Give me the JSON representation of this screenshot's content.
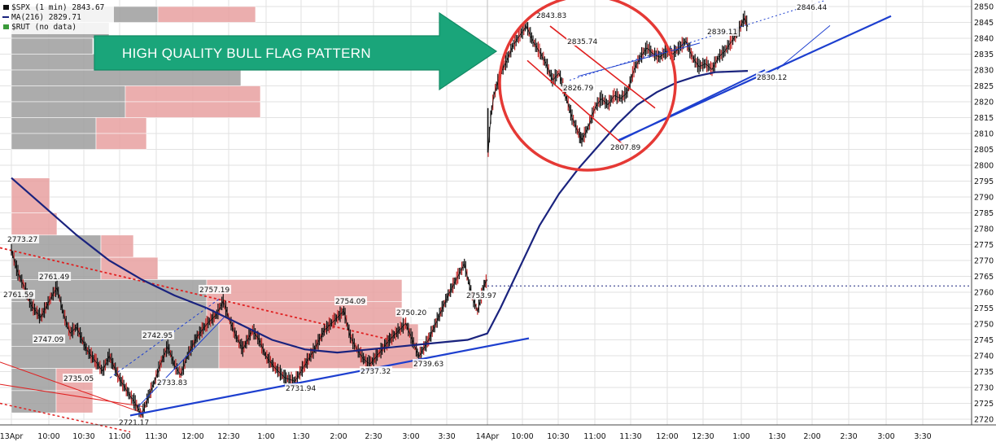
{
  "chart_data": {
    "type": "line",
    "title": "$SPX (1 min)",
    "legend": [
      {
        "label": "$SPX (1 min) 2843.67",
        "color": "#111111"
      },
      {
        "label": "MA(216) 2829.71",
        "color": "#1a237e"
      },
      {
        "label": "$RUT (no data)",
        "color": "#3a9a3a"
      }
    ],
    "banner": "HIGH QUALITY BULL FLAG PATTERN",
    "colors": {
      "price": "#111111",
      "ma": "#1a237e",
      "trend": "#1d3fcf",
      "flag": "#e02020",
      "circle": "#e53935",
      "banner": "#1aa57a",
      "volume_profile_gray": "#9e9e9e",
      "volume_profile_red": "#e8a0a0"
    },
    "ylim": [
      2716,
      2852
    ],
    "y_ticks": [
      2720,
      2725,
      2730,
      2735,
      2740,
      2745,
      2750,
      2755,
      2760,
      2765,
      2770,
      2775,
      2780,
      2785,
      2790,
      2795,
      2800,
      2805,
      2810,
      2815,
      2820,
      2825,
      2830,
      2835,
      2840,
      2845,
      2850
    ],
    "x_ticks": [
      "13Apr",
      "10:00",
      "10:30",
      "11:00",
      "11:30",
      "12:00",
      "12:30",
      "1:00",
      "1:30",
      "2:00",
      "2:30",
      "3:00",
      "3:30",
      "14Apr",
      "10:00",
      "10:30",
      "11:00",
      "11:30",
      "12:00",
      "12:30",
      "1:00",
      "1:30",
      "2:00",
      "2:30",
      "3:00",
      "3:30"
    ],
    "price_annotations": [
      {
        "text": "2773.27",
        "x": "13Apr 9:35",
        "y": 2773.27
      },
      {
        "text": "2761.59",
        "x": "13Apr 9:35",
        "y": 2761.59
      },
      {
        "text": "2761.49",
        "x": "13Apr 10:05",
        "y": 2761.49
      },
      {
        "text": "2747.09",
        "x": "13Apr 10:05",
        "y": 2747.09
      },
      {
        "text": "2735.05",
        "x": "13Apr 10:30",
        "y": 2735.05
      },
      {
        "text": "2721.17",
        "x": "13Apr 11:00",
        "y": 2721.17
      },
      {
        "text": "2742.95",
        "x": "13Apr 11:30",
        "y": 2742.95
      },
      {
        "text": "2733.83",
        "x": "13Apr 11:45",
        "y": 2733.83
      },
      {
        "text": "2757.19",
        "x": "13Apr 12:25",
        "y": 2757.19
      },
      {
        "text": "2731.94",
        "x": "13Apr 1:25",
        "y": 2731.94
      },
      {
        "text": "2754.09",
        "x": "13Apr 2:00",
        "y": 2754.09
      },
      {
        "text": "2737.32",
        "x": "13Apr 2:20",
        "y": 2737.32
      },
      {
        "text": "2750.20",
        "x": "13Apr 2:50",
        "y": 2750.2
      },
      {
        "text": "2739.63",
        "x": "13Apr 3:00",
        "y": 2739.63
      },
      {
        "text": "2753.97",
        "x": "13Apr 3:55",
        "y": 2753.97
      },
      {
        "text": "2843.83",
        "x": "14Apr 10:20",
        "y": 2843.83
      },
      {
        "text": "2835.74",
        "x": "14Apr 10:35",
        "y": 2835.74
      },
      {
        "text": "2826.79",
        "x": "14Apr 10:30",
        "y": 2826.79
      },
      {
        "text": "2807.89",
        "x": "14Apr 11:15",
        "y": 2807.89
      },
      {
        "text": "2839.11",
        "x": "14Apr 12:55",
        "y": 2839.11
      },
      {
        "text": "2830.12",
        "x": "14Apr 1:20",
        "y": 2830.12
      },
      {
        "text": "2846.44",
        "x": "14Apr 1:50",
        "y": 2846.44
      }
    ],
    "price_series": [
      [
        0,
        2773.27
      ],
      [
        4,
        2766
      ],
      [
        8,
        2761.59
      ],
      [
        12,
        2756
      ],
      [
        18,
        2752
      ],
      [
        24,
        2758
      ],
      [
        28,
        2761.49
      ],
      [
        32,
        2753
      ],
      [
        36,
        2747.09
      ],
      [
        40,
        2749
      ],
      [
        46,
        2742
      ],
      [
        52,
        2738
      ],
      [
        56,
        2735.05
      ],
      [
        60,
        2740
      ],
      [
        66,
        2733
      ],
      [
        72,
        2728
      ],
      [
        76,
        2725
      ],
      [
        80,
        2721.17
      ],
      [
        84,
        2727
      ],
      [
        88,
        2732
      ],
      [
        92,
        2738
      ],
      [
        96,
        2742.95
      ],
      [
        100,
        2737
      ],
      [
        104,
        2733.83
      ],
      [
        108,
        2740
      ],
      [
        114,
        2746
      ],
      [
        120,
        2750
      ],
      [
        126,
        2753
      ],
      [
        130,
        2757.19
      ],
      [
        134,
        2751
      ],
      [
        138,
        2746
      ],
      [
        142,
        2742
      ],
      [
        148,
        2748
      ],
      [
        152,
        2745
      ],
      [
        156,
        2740
      ],
      [
        162,
        2736
      ],
      [
        168,
        2733
      ],
      [
        174,
        2731.94
      ],
      [
        180,
        2737
      ],
      [
        186,
        2742
      ],
      [
        192,
        2748
      ],
      [
        198,
        2751
      ],
      [
        204,
        2754.09
      ],
      [
        208,
        2746
      ],
      [
        212,
        2742
      ],
      [
        216,
        2739
      ],
      [
        220,
        2737.32
      ],
      [
        226,
        2741
      ],
      [
        232,
        2745
      ],
      [
        238,
        2748
      ],
      [
        242,
        2750.2
      ],
      [
        246,
        2745
      ],
      [
        250,
        2739.63
      ],
      [
        256,
        2745
      ],
      [
        262,
        2752
      ],
      [
        268,
        2759
      ],
      [
        274,
        2765
      ],
      [
        278,
        2769
      ],
      [
        282,
        2760
      ],
      [
        286,
        2753.97
      ],
      [
        290,
        2762
      ],
      [
        292,
        2764
      ],
      [
        292.5,
        2804
      ],
      [
        294,
        2815
      ],
      [
        296,
        2822
      ],
      [
        300,
        2829
      ],
      [
        304,
        2833
      ],
      [
        308,
        2838
      ],
      [
        312,
        2841
      ],
      [
        316,
        2843.83
      ],
      [
        320,
        2839
      ],
      [
        324,
        2835.74
      ],
      [
        328,
        2832
      ],
      [
        332,
        2826.79
      ],
      [
        336,
        2829
      ],
      [
        340,
        2822
      ],
      [
        344,
        2815
      ],
      [
        348,
        2810
      ],
      [
        350,
        2807.89
      ],
      [
        354,
        2812
      ],
      [
        358,
        2818
      ],
      [
        362,
        2821
      ],
      [
        366,
        2819
      ],
      [
        370,
        2822
      ],
      [
        374,
        2821
      ],
      [
        378,
        2823
      ],
      [
        382,
        2830
      ],
      [
        386,
        2834
      ],
      [
        390,
        2837
      ],
      [
        394,
        2835
      ],
      [
        398,
        2834
      ],
      [
        402,
        2836
      ],
      [
        406,
        2835
      ],
      [
        410,
        2837
      ],
      [
        414,
        2839.11
      ],
      [
        418,
        2834
      ],
      [
        422,
        2831
      ],
      [
        426,
        2832
      ],
      [
        430,
        2830.12
      ],
      [
        434,
        2834
      ],
      [
        438,
        2836
      ],
      [
        442,
        2839
      ],
      [
        446,
        2842
      ],
      [
        450,
        2846.44
      ],
      [
        452,
        2843.67
      ]
    ],
    "ma_series": [
      [
        0,
        2796
      ],
      [
        20,
        2787
      ],
      [
        40,
        2778
      ],
      [
        60,
        2770
      ],
      [
        80,
        2764
      ],
      [
        100,
        2759
      ],
      [
        120,
        2755
      ],
      [
        140,
        2750
      ],
      [
        160,
        2745
      ],
      [
        180,
        2742
      ],
      [
        200,
        2741
      ],
      [
        220,
        2742
      ],
      [
        240,
        2743
      ],
      [
        260,
        2744
      ],
      [
        280,
        2745
      ],
      [
        292,
        2747
      ],
      [
        300,
        2755
      ],
      [
        312,
        2768
      ],
      [
        324,
        2781
      ],
      [
        336,
        2791
      ],
      [
        348,
        2799
      ],
      [
        360,
        2806
      ],
      [
        372,
        2813
      ],
      [
        384,
        2819
      ],
      [
        396,
        2823
      ],
      [
        408,
        2826
      ],
      [
        420,
        2828
      ],
      [
        432,
        2829.3
      ],
      [
        452,
        2829.71
      ]
    ],
    "x_axis_note": "x = minutes of session time; 13Apr spans 0-292 (closing 9:30-4:00, with 14Apr starting at 292)",
    "dotted_level": 2762
  }
}
